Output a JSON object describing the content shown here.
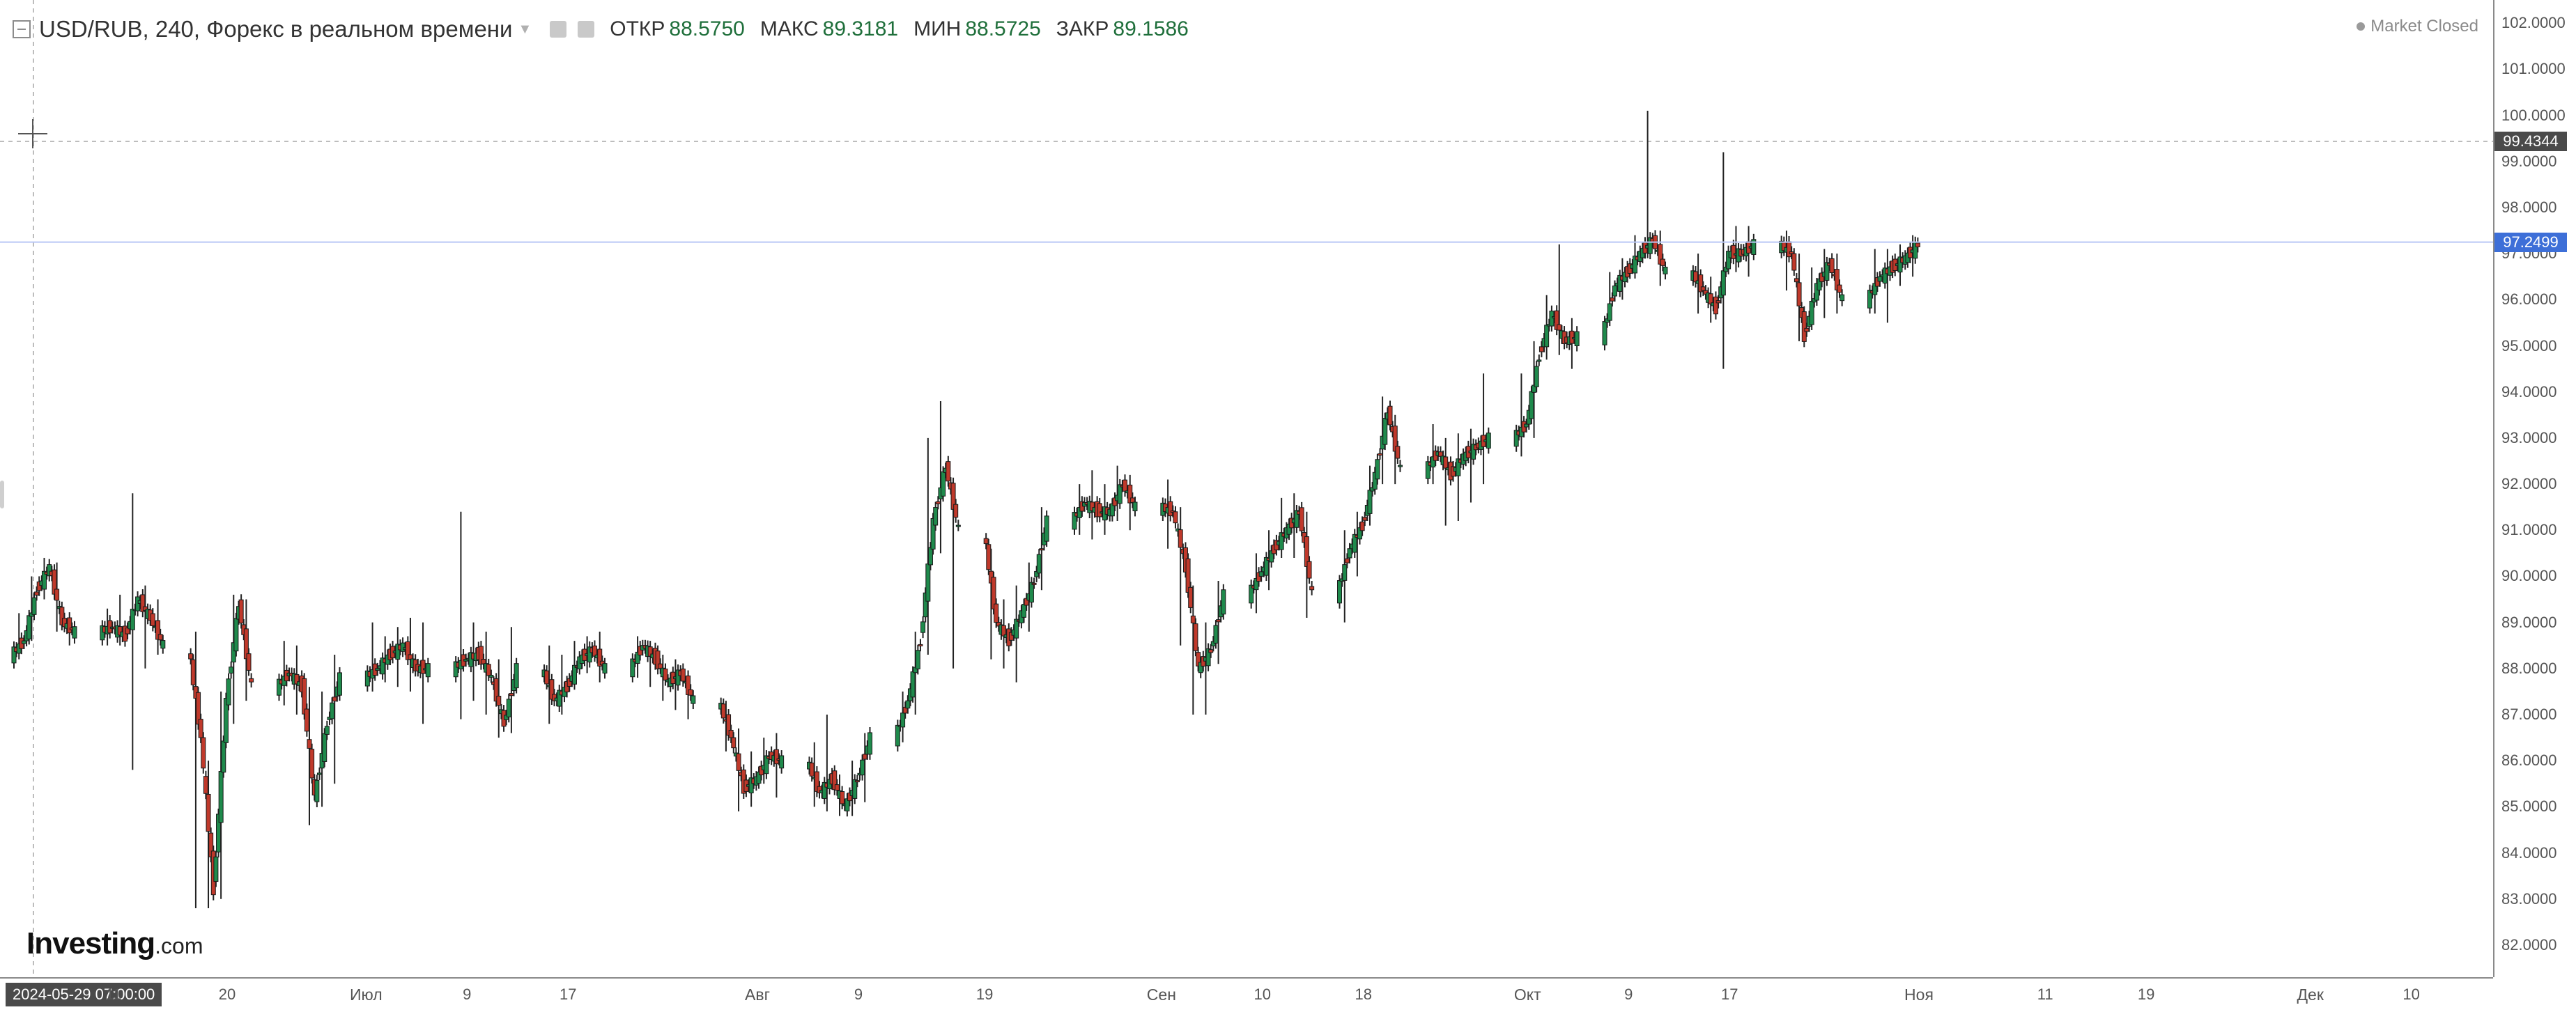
{
  "header": {
    "title": "USD/RUB, 240, Форекс в реальном времени",
    "ohlc": [
      {
        "label": "ОТКР",
        "value": "88.5750"
      },
      {
        "label": "МАКС",
        "value": "89.3181"
      },
      {
        "label": "МИН",
        "value": "88.5725"
      },
      {
        "label": "ЗАКР",
        "value": "89.1586"
      }
    ]
  },
  "status": "Market Closed",
  "logo": {
    "name": "Investing",
    "suffix": ".com"
  },
  "crosshair": {
    "time_label": "2024-05-29 07:00:00",
    "price_label": "99.4344",
    "price": 99.4344
  },
  "last_price": {
    "label": "97.2499",
    "value": 97.2499
  },
  "colors": {
    "up": "#1f8a4c",
    "down": "#c0392b",
    "wick": "#222222",
    "last_price": "#3d6fd8",
    "crosshair_label": "#4a4a4a"
  },
  "chart_data": {
    "type": "candlestick",
    "title": "USD/RUB, 240, Форекс в реальном времени",
    "ylim": [
      81.5,
      102.2
    ],
    "y_ticks": [
      82,
      83,
      84,
      85,
      86,
      87,
      88,
      89,
      90,
      91,
      92,
      93,
      94,
      95,
      96,
      97,
      98,
      99,
      100,
      101,
      102
    ],
    "y_tick_labels": [
      "82.0000",
      "83.0000",
      "84.0000",
      "85.0000",
      "86.0000",
      "87.0000",
      "88.0000",
      "89.0000",
      "90.0000",
      "91.0000",
      "92.0000",
      "93.0000",
      "94.0000",
      "95.0000",
      "96.0000",
      "97.0000",
      "98.0000",
      "99.0000",
      "100.0000",
      "101.0000",
      "102.0000"
    ],
    "x_range": [
      "2024-06-03",
      "2024-12-13"
    ],
    "x_ticks": [
      {
        "date": "2024-06-11",
        "label": "11"
      },
      {
        "date": "2024-06-20",
        "label": "20"
      },
      {
        "date": "2024-07-01",
        "label": "Июл",
        "month": true
      },
      {
        "date": "2024-07-09",
        "label": "9"
      },
      {
        "date": "2024-07-17",
        "label": "17"
      },
      {
        "date": "2024-08-01",
        "label": "Авг",
        "month": true
      },
      {
        "date": "2024-08-09",
        "label": "9"
      },
      {
        "date": "2024-08-19",
        "label": "19"
      },
      {
        "date": "2024-09-02",
        "label": "Сен",
        "month": true
      },
      {
        "date": "2024-09-10",
        "label": "10"
      },
      {
        "date": "2024-09-18",
        "label": "18"
      },
      {
        "date": "2024-10-01",
        "label": "Окт",
        "month": true
      },
      {
        "date": "2024-10-09",
        "label": "9"
      },
      {
        "date": "2024-10-17",
        "label": "17"
      },
      {
        "date": "2024-11-01",
        "label": "Ноя",
        "month": true
      },
      {
        "date": "2024-11-11",
        "label": "11"
      },
      {
        "date": "2024-11-19",
        "label": "19"
      },
      {
        "date": "2024-12-02",
        "label": "Дек",
        "month": true
      },
      {
        "date": "2024-12-10",
        "label": "10"
      }
    ],
    "daily_close": [
      {
        "date": "2024-06-03",
        "close": 88.6,
        "high": 89.2,
        "low": 88.2
      },
      {
        "date": "2024-06-04",
        "close": 89.7,
        "high": 90.0,
        "low": 88.6
      },
      {
        "date": "2024-06-05",
        "close": 90.2,
        "high": 90.4,
        "low": 89.5
      },
      {
        "date": "2024-06-06",
        "close": 89.0,
        "high": 90.3,
        "low": 88.8
      },
      {
        "date": "2024-06-07",
        "close": 88.8,
        "high": 89.1,
        "low": 88.5
      },
      {
        "date": "2024-06-10",
        "close": 88.9,
        "high": 89.3,
        "low": 88.5
      },
      {
        "date": "2024-06-11",
        "close": 88.7,
        "high": 89.6,
        "low": 88.5
      },
      {
        "date": "2024-06-12",
        "close": 89.5,
        "high": 91.8,
        "low": 85.8
      },
      {
        "date": "2024-06-13",
        "close": 89.1,
        "high": 89.8,
        "low": 88.0
      },
      {
        "date": "2024-06-14",
        "close": 88.5,
        "high": 89.5,
        "low": 88.3
      },
      {
        "date": "2024-06-17",
        "close": 86.5,
        "high": 88.8,
        "low": 82.8
      },
      {
        "date": "2024-06-18",
        "close": 83.2,
        "high": 86.0,
        "low": 82.8
      },
      {
        "date": "2024-06-19",
        "close": 87.3,
        "high": 87.5,
        "low": 83.0
      },
      {
        "date": "2024-06-20",
        "close": 89.4,
        "high": 89.6,
        "low": 86.8
      },
      {
        "date": "2024-06-21",
        "close": 87.6,
        "high": 89.5,
        "low": 87.3
      },
      {
        "date": "2024-06-24",
        "close": 87.9,
        "high": 88.6,
        "low": 87.2
      },
      {
        "date": "2024-06-25",
        "close": 87.6,
        "high": 88.5,
        "low": 87.0
      },
      {
        "date": "2024-06-26",
        "close": 85.2,
        "high": 87.6,
        "low": 84.6
      },
      {
        "date": "2024-06-27",
        "close": 86.8,
        "high": 87.5,
        "low": 85.0
      },
      {
        "date": "2024-06-28",
        "close": 87.8,
        "high": 88.3,
        "low": 85.5
      },
      {
        "date": "2024-07-01",
        "close": 88.0,
        "high": 89.0,
        "low": 87.5
      },
      {
        "date": "2024-07-02",
        "close": 88.3,
        "high": 88.7,
        "low": 87.7
      },
      {
        "date": "2024-07-03",
        "close": 88.5,
        "high": 88.9,
        "low": 87.6
      },
      {
        "date": "2024-07-04",
        "close": 88.0,
        "high": 89.1,
        "low": 87.5
      },
      {
        "date": "2024-07-05",
        "close": 88.0,
        "high": 89.0,
        "low": 86.8
      },
      {
        "date": "2024-07-08",
        "close": 88.2,
        "high": 91.4,
        "low": 86.9
      },
      {
        "date": "2024-07-09",
        "close": 88.3,
        "high": 89.0,
        "low": 87.3
      },
      {
        "date": "2024-07-10",
        "close": 87.8,
        "high": 88.8,
        "low": 87.0
      },
      {
        "date": "2024-07-11",
        "close": 86.8,
        "high": 88.2,
        "low": 86.5
      },
      {
        "date": "2024-07-12",
        "close": 88.0,
        "high": 88.9,
        "low": 86.6
      },
      {
        "date": "2024-07-15",
        "close": 87.3,
        "high": 88.5,
        "low": 86.8
      },
      {
        "date": "2024-07-16",
        "close": 87.6,
        "high": 88.3,
        "low": 87.0
      },
      {
        "date": "2024-07-17",
        "close": 88.2,
        "high": 88.6,
        "low": 87.6
      },
      {
        "date": "2024-07-18",
        "close": 88.4,
        "high": 88.7,
        "low": 87.9
      },
      {
        "date": "2024-07-19",
        "close": 88.0,
        "high": 88.8,
        "low": 87.7
      },
      {
        "date": "2024-07-22",
        "close": 88.5,
        "high": 88.7,
        "low": 87.8
      },
      {
        "date": "2024-07-23",
        "close": 88.2,
        "high": 88.6,
        "low": 87.6
      },
      {
        "date": "2024-07-24",
        "close": 87.7,
        "high": 88.3,
        "low": 87.3
      },
      {
        "date": "2024-07-25",
        "close": 87.9,
        "high": 88.2,
        "low": 87.1
      },
      {
        "date": "2024-07-26",
        "close": 87.3,
        "high": 87.9,
        "low": 86.9
      },
      {
        "date": "2024-07-29",
        "close": 86.5,
        "high": 87.3,
        "low": 86.2
      },
      {
        "date": "2024-07-30",
        "close": 85.4,
        "high": 86.7,
        "low": 84.9
      },
      {
        "date": "2024-07-31",
        "close": 85.6,
        "high": 86.2,
        "low": 85.0
      },
      {
        "date": "2024-08-01",
        "close": 86.1,
        "high": 86.5,
        "low": 85.5
      },
      {
        "date": "2024-08-02",
        "close": 86.0,
        "high": 86.6,
        "low": 85.2
      },
      {
        "date": "2024-08-05",
        "close": 85.3,
        "high": 86.4,
        "low": 85.0
      },
      {
        "date": "2024-08-06",
        "close": 85.6,
        "high": 87.0,
        "low": 84.9
      },
      {
        "date": "2024-08-07",
        "close": 85.0,
        "high": 85.7,
        "low": 84.8
      },
      {
        "date": "2024-08-08",
        "close": 85.6,
        "high": 86.0,
        "low": 84.8
      },
      {
        "date": "2024-08-09",
        "close": 86.5,
        "high": 86.6,
        "low": 85.1
      },
      {
        "date": "2024-08-12",
        "close": 87.3,
        "high": 87.5,
        "low": 86.4
      },
      {
        "date": "2024-08-13",
        "close": 88.6,
        "high": 88.8,
        "low": 87.0
      },
      {
        "date": "2024-08-14",
        "close": 91.2,
        "high": 93.0,
        "low": 88.3
      },
      {
        "date": "2024-08-15",
        "close": 92.4,
        "high": 93.8,
        "low": 90.5
      },
      {
        "date": "2024-08-16",
        "close": 91.0,
        "high": 92.1,
        "low": 88.0
      },
      {
        "date": "2024-08-19",
        "close": 89.0,
        "high": 90.6,
        "low": 88.2
      },
      {
        "date": "2024-08-20",
        "close": 88.6,
        "high": 89.5,
        "low": 88.0
      },
      {
        "date": "2024-08-21",
        "close": 89.2,
        "high": 89.8,
        "low": 87.7
      },
      {
        "date": "2024-08-22",
        "close": 89.9,
        "high": 90.3,
        "low": 88.8
      },
      {
        "date": "2024-08-23",
        "close": 91.2,
        "high": 91.5,
        "low": 89.7
      },
      {
        "date": "2024-08-26",
        "close": 91.6,
        "high": 92.0,
        "low": 90.9
      },
      {
        "date": "2024-08-27",
        "close": 91.4,
        "high": 92.3,
        "low": 90.8
      },
      {
        "date": "2024-08-28",
        "close": 91.4,
        "high": 92.0,
        "low": 90.9
      },
      {
        "date": "2024-08-29",
        "close": 92.0,
        "high": 92.4,
        "low": 91.2
      },
      {
        "date": "2024-08-30",
        "close": 91.5,
        "high": 92.2,
        "low": 91.0
      },
      {
        "date": "2024-09-02",
        "close": 91.4,
        "high": 92.1,
        "low": 90.6
      },
      {
        "date": "2024-09-03",
        "close": 90.2,
        "high": 91.5,
        "low": 88.5
      },
      {
        "date": "2024-09-04",
        "close": 88.0,
        "high": 89.8,
        "low": 87.0
      },
      {
        "date": "2024-09-05",
        "close": 88.4,
        "high": 89.0,
        "low": 87.0
      },
      {
        "date": "2024-09-06",
        "close": 89.6,
        "high": 89.9,
        "low": 88.1
      },
      {
        "date": "2024-09-09",
        "close": 90.1,
        "high": 90.5,
        "low": 89.2
      },
      {
        "date": "2024-09-10",
        "close": 90.6,
        "high": 91.0,
        "low": 89.7
      },
      {
        "date": "2024-09-11",
        "close": 91.0,
        "high": 91.7,
        "low": 90.4
      },
      {
        "date": "2024-09-12",
        "close": 91.4,
        "high": 91.8,
        "low": 90.4
      },
      {
        "date": "2024-09-13",
        "close": 89.6,
        "high": 91.4,
        "low": 89.1
      },
      {
        "date": "2024-09-16",
        "close": 90.6,
        "high": 91.0,
        "low": 89.0
      },
      {
        "date": "2024-09-17",
        "close": 91.1,
        "high": 91.4,
        "low": 90.0
      },
      {
        "date": "2024-09-18",
        "close": 92.2,
        "high": 92.4,
        "low": 91.1
      },
      {
        "date": "2024-09-19",
        "close": 93.6,
        "high": 93.9,
        "low": 92.0
      },
      {
        "date": "2024-09-20",
        "close": 92.3,
        "high": 93.5,
        "low": 92.0
      },
      {
        "date": "2024-09-23",
        "close": 92.7,
        "high": 93.3,
        "low": 92.0
      },
      {
        "date": "2024-09-24",
        "close": 92.2,
        "high": 93.0,
        "low": 91.1
      },
      {
        "date": "2024-09-25",
        "close": 92.6,
        "high": 93.1,
        "low": 91.2
      },
      {
        "date": "2024-09-26",
        "close": 92.8,
        "high": 93.2,
        "low": 91.6
      },
      {
        "date": "2024-09-27",
        "close": 93.0,
        "high": 94.4,
        "low": 92.0
      },
      {
        "date": "2024-09-30",
        "close": 93.3,
        "high": 94.4,
        "low": 92.6
      },
      {
        "date": "2024-10-01",
        "close": 94.8,
        "high": 95.1,
        "low": 93.0
      },
      {
        "date": "2024-10-02",
        "close": 95.7,
        "high": 96.1,
        "low": 94.7
      },
      {
        "date": "2024-10-03",
        "close": 95.1,
        "high": 97.2,
        "low": 94.8
      },
      {
        "date": "2024-10-04",
        "close": 95.2,
        "high": 95.6,
        "low": 94.5
      },
      {
        "date": "2024-10-07",
        "close": 96.3,
        "high": 96.6,
        "low": 95.9
      },
      {
        "date": "2024-10-08",
        "close": 96.6,
        "high": 96.9,
        "low": 96.0
      },
      {
        "date": "2024-10-09",
        "close": 97.0,
        "high": 97.4,
        "low": 96.6
      },
      {
        "date": "2024-10-10",
        "close": 97.3,
        "high": 100.1,
        "low": 96.9
      },
      {
        "date": "2024-10-11",
        "close": 96.6,
        "high": 97.5,
        "low": 96.3
      },
      {
        "date": "2024-10-14",
        "close": 96.2,
        "high": 97.0,
        "low": 95.7
      },
      {
        "date": "2024-10-15",
        "close": 95.8,
        "high": 96.5,
        "low": 95.5
      },
      {
        "date": "2024-10-16",
        "close": 97.0,
        "high": 99.2,
        "low": 94.5
      },
      {
        "date": "2024-10-17",
        "close": 97.0,
        "high": 97.6,
        "low": 96.6
      },
      {
        "date": "2024-10-18",
        "close": 97.2,
        "high": 97.6,
        "low": 96.5
      },
      {
        "date": "2024-10-21",
        "close": 97.0,
        "high": 97.5,
        "low": 96.2
      },
      {
        "date": "2024-10-22",
        "close": 95.2,
        "high": 97.0,
        "low": 95.1
      },
      {
        "date": "2024-10-23",
        "close": 96.3,
        "high": 96.7,
        "low": 95.6
      },
      {
        "date": "2024-10-24",
        "close": 96.8,
        "high": 97.1,
        "low": 95.6
      },
      {
        "date": "2024-10-25",
        "close": 96.0,
        "high": 97.0,
        "low": 95.7
      },
      {
        "date": "2024-10-28",
        "close": 96.5,
        "high": 97.1,
        "low": 95.7
      },
      {
        "date": "2024-10-29",
        "close": 96.7,
        "high": 97.1,
        "low": 95.5
      },
      {
        "date": "2024-10-30",
        "close": 96.9,
        "high": 97.2,
        "low": 96.3
      },
      {
        "date": "2024-10-31",
        "close": 97.2,
        "high": 97.4,
        "low": 96.5
      }
    ]
  }
}
